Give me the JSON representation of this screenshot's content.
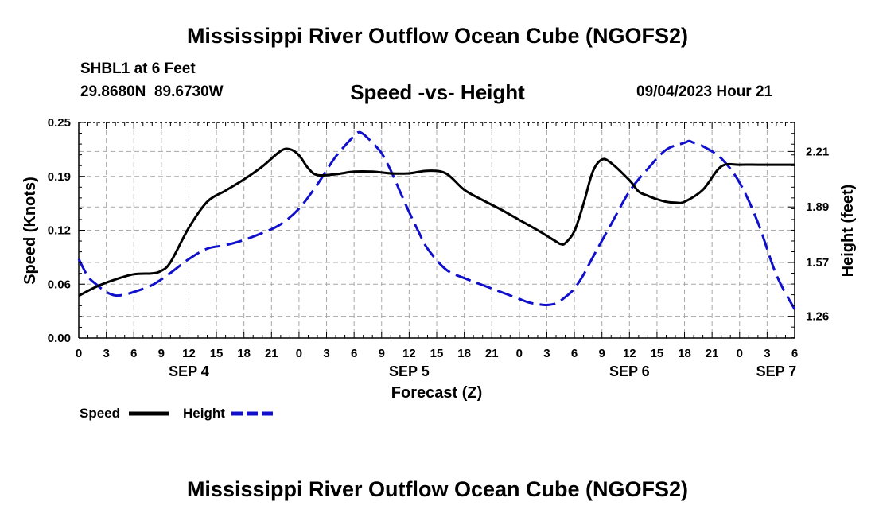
{
  "chart_data": {
    "type": "line",
    "title": "Mississippi River Outflow Ocean Cube (NGOFS2)",
    "bottom_title": "Mississippi River Outflow Ocean Cube (NGOFS2)",
    "station": "SHBL1 at 6 Feet",
    "coords": "29.8680N  89.6730W",
    "subtitle": "Speed -vs- Height",
    "run_time": "09/04/2023 Hour 21",
    "xlabel": "Forecast (Z)",
    "ylabel_left": "Speed (Knots)",
    "ylabel_right": "Height (feet)",
    "xlim": [
      0,
      78
    ],
    "ylim_left": [
      0,
      0.25
    ],
    "ylim_right": [
      1.1346,
      2.3768
    ],
    "x_ticks": [
      0,
      3,
      6,
      9,
      12,
      15,
      18,
      21,
      24,
      27,
      30,
      33,
      36,
      39,
      42,
      45,
      48,
      51,
      54,
      57,
      60,
      63,
      66,
      69,
      72,
      75,
      78
    ],
    "x_tick_labels": [
      "0",
      "3",
      "6",
      "9",
      "12",
      "15",
      "18",
      "21",
      "0",
      "3",
      "6",
      "9",
      "12",
      "15",
      "18",
      "21",
      "0",
      "3",
      "6",
      "9",
      "12",
      "15",
      "18",
      "21",
      "0",
      "3",
      "6"
    ],
    "day_labels": [
      {
        "x": 12,
        "label": "SEP 4"
      },
      {
        "x": 36,
        "label": "SEP 5"
      },
      {
        "x": 60,
        "label": "SEP 6"
      },
      {
        "x": 76,
        "label": "SEP 7"
      }
    ],
    "y_left_ticks": [
      0.0,
      0.0625,
      0.125,
      0.1875,
      0.25
    ],
    "y_left_tick_labels": [
      "0.00",
      "0.06",
      "0.12",
      "0.19",
      "0.25"
    ],
    "y_right_ticks": [
      1.26,
      1.57,
      1.89,
      2.21
    ],
    "y_right_tick_labels": [
      "1.26",
      "1.57",
      "1.89",
      "2.21"
    ],
    "grid": true,
    "legend": [
      {
        "name": "Speed",
        "color": "#000000",
        "dash": "solid"
      },
      {
        "name": "Height",
        "color": "#1010cc",
        "dash": "dashed"
      }
    ],
    "series": [
      {
        "name": "Speed",
        "axis": "left",
        "color": "#000000",
        "x": [
          0,
          2,
          4,
          6,
          8,
          9,
          10,
          12,
          14,
          16,
          18,
          20,
          22,
          23,
          24,
          25,
          26,
          28,
          30,
          32,
          34,
          36,
          38,
          40,
          42,
          44,
          46,
          48,
          50,
          52,
          52.5,
          53,
          54,
          55,
          56,
          57,
          58,
          60,
          61,
          62,
          63,
          64,
          65,
          66,
          68,
          70,
          72,
          74,
          76,
          78
        ],
        "y": [
          0.049,
          0.06,
          0.068,
          0.074,
          0.075,
          0.078,
          0.088,
          0.128,
          0.158,
          0.171,
          0.184,
          0.199,
          0.217,
          0.219,
          0.212,
          0.197,
          0.189,
          0.19,
          0.193,
          0.193,
          0.191,
          0.191,
          0.194,
          0.191,
          0.172,
          0.16,
          0.149,
          0.137,
          0.125,
          0.112,
          0.109,
          0.11,
          0.124,
          0.156,
          0.193,
          0.207,
          0.203,
          0.183,
          0.17,
          0.165,
          0.161,
          0.158,
          0.157,
          0.158,
          0.172,
          0.199,
          0.201,
          0.201,
          0.201,
          0.201
        ]
      },
      {
        "name": "Height",
        "axis": "right",
        "color": "#1010cc",
        "x": [
          0,
          1,
          2,
          3,
          4,
          5,
          6,
          8,
          10,
          12,
          14,
          16,
          18,
          20,
          22,
          24,
          26,
          28,
          30,
          30.5,
          31,
          32,
          33,
          34,
          35,
          36,
          37,
          38,
          40,
          42,
          44,
          46,
          48,
          49,
          50,
          51,
          52,
          53,
          54,
          55,
          56,
          58,
          60,
          62,
          64,
          66,
          66.5,
          67,
          68,
          70,
          72,
          74,
          76,
          78
        ],
        "y": [
          1.59,
          1.49,
          1.44,
          1.4,
          1.38,
          1.385,
          1.4,
          1.44,
          1.51,
          1.59,
          1.65,
          1.67,
          1.7,
          1.74,
          1.79,
          1.88,
          2.02,
          2.18,
          2.3,
          2.32,
          2.31,
          2.26,
          2.2,
          2.1,
          1.98,
          1.86,
          1.75,
          1.65,
          1.53,
          1.48,
          1.44,
          1.4,
          1.36,
          1.34,
          1.33,
          1.325,
          1.335,
          1.37,
          1.42,
          1.5,
          1.6,
          1.79,
          1.98,
          2.11,
          2.22,
          2.26,
          2.27,
          2.26,
          2.24,
          2.17,
          2.03,
          1.8,
          1.5,
          1.3
        ]
      }
    ]
  }
}
